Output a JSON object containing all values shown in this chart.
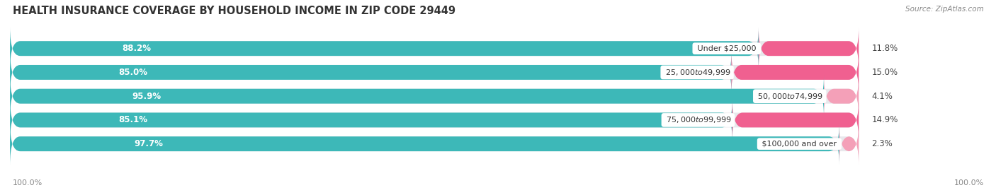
{
  "title": "HEALTH INSURANCE COVERAGE BY HOUSEHOLD INCOME IN ZIP CODE 29449",
  "source": "Source: ZipAtlas.com",
  "categories": [
    "Under $25,000",
    "$25,000 to $49,999",
    "$50,000 to $74,999",
    "$75,000 to $99,999",
    "$100,000 and over"
  ],
  "with_coverage": [
    88.2,
    85.0,
    95.9,
    85.1,
    97.7
  ],
  "without_coverage": [
    11.8,
    15.0,
    4.1,
    14.9,
    2.3
  ],
  "color_with": "#3db8b8",
  "color_without": "#f06090",
  "color_without_light": "#f4a0b8",
  "bar_bg_color": "#e8e8ec",
  "fig_bg_color": "#ffffff",
  "title_fontsize": 10.5,
  "label_fontsize": 8.5,
  "tick_fontsize": 8,
  "legend_fontsize": 8.5,
  "x_left_label": "100.0%",
  "x_right_label": "100.0%"
}
